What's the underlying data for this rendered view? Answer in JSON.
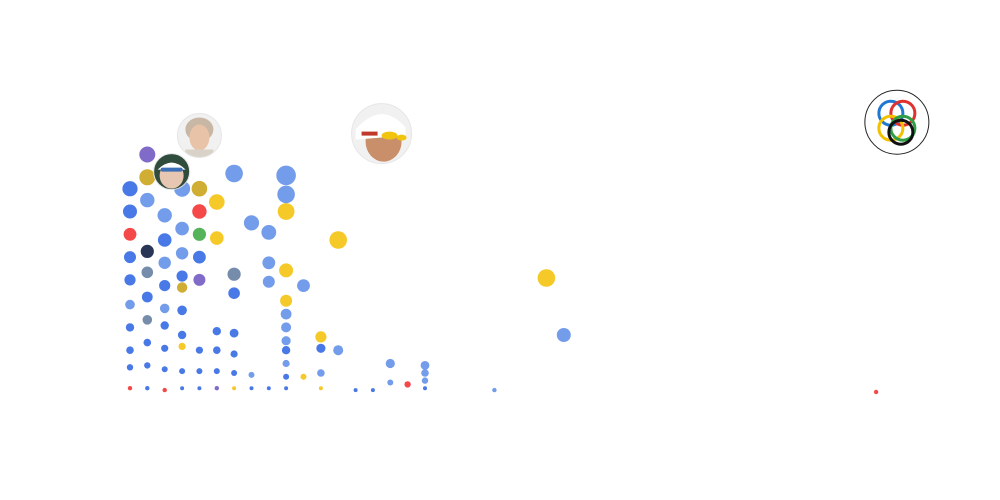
{
  "chart_data": {
    "type": "scatter",
    "title": "",
    "xlabel": "",
    "ylabel": "",
    "grid": false,
    "legend": "none",
    "colors": {
      "blue": "#3f72e6",
      "light_blue": "#6b97ea",
      "yellow": "#f4c61b",
      "red": "#f43f3f",
      "purple": "#7a63c6",
      "olive": "#cda928",
      "green": "#4caf50",
      "navy": "#1e2b4d",
      "gray_blue": "#6f86a6"
    },
    "annotations": [
      {
        "name": "portrait-older-woman-icon",
        "x": 4,
        "y": 13.5
      },
      {
        "name": "portrait-swimmer-cap-goggles-icon",
        "x": 14.5,
        "y": 13.6
      },
      {
        "name": "portrait-swimmer-goggles-icon",
        "x": 2.4,
        "y": 11.6
      },
      {
        "name": "olympic-rings-icon",
        "x": 44.2,
        "y": 14.2
      }
    ],
    "points": [
      {
        "x": 0,
        "y": 0.2,
        "s": 2.2,
        "c": "red"
      },
      {
        "x": 0,
        "y": 1.3,
        "s": 3.2,
        "c": "blue"
      },
      {
        "x": 0,
        "y": 2.2,
        "s": 3.8,
        "c": "blue"
      },
      {
        "x": 0,
        "y": 3.4,
        "s": 4.2,
        "c": "blue"
      },
      {
        "x": 0,
        "y": 4.6,
        "s": 4.8,
        "c": "light_blue"
      },
      {
        "x": 0,
        "y": 5.9,
        "s": 5.6,
        "c": "blue"
      },
      {
        "x": 0,
        "y": 7.1,
        "s": 6.0,
        "c": "blue"
      },
      {
        "x": 0,
        "y": 8.3,
        "s": 6.4,
        "c": "red"
      },
      {
        "x": 0,
        "y": 9.5,
        "s": 7.0,
        "c": "blue"
      },
      {
        "x": 0,
        "y": 10.7,
        "s": 7.6,
        "c": "blue"
      },
      {
        "x": 1,
        "y": 0.2,
        "s": 2.2,
        "c": "blue"
      },
      {
        "x": 1,
        "y": 1.4,
        "s": 3.2,
        "c": "blue"
      },
      {
        "x": 1,
        "y": 2.6,
        "s": 3.8,
        "c": "blue"
      },
      {
        "x": 1,
        "y": 3.8,
        "s": 4.8,
        "c": "gray_blue"
      },
      {
        "x": 1,
        "y": 5.0,
        "s": 5.4,
        "c": "blue"
      },
      {
        "x": 1,
        "y": 6.3,
        "s": 5.8,
        "c": "gray_blue"
      },
      {
        "x": 1,
        "y": 7.4,
        "s": 6.6,
        "c": "navy"
      },
      {
        "x": 1,
        "y": 10.1,
        "s": 7.2,
        "c": "light_blue"
      },
      {
        "x": 1,
        "y": 11.3,
        "s": 8.0,
        "c": "olive"
      },
      {
        "x": 1,
        "y": 12.5,
        "s": 8.0,
        "c": "purple"
      },
      {
        "x": 2,
        "y": 0.1,
        "s": 2.2,
        "c": "red"
      },
      {
        "x": 2,
        "y": 1.2,
        "s": 3.0,
        "c": "blue"
      },
      {
        "x": 2,
        "y": 2.3,
        "s": 3.6,
        "c": "blue"
      },
      {
        "x": 2,
        "y": 3.5,
        "s": 4.2,
        "c": "blue"
      },
      {
        "x": 2,
        "y": 4.4,
        "s": 4.8,
        "c": "light_blue"
      },
      {
        "x": 2,
        "y": 5.6,
        "s": 5.6,
        "c": "blue"
      },
      {
        "x": 2,
        "y": 6.8,
        "s": 6.2,
        "c": "light_blue"
      },
      {
        "x": 2,
        "y": 8.0,
        "s": 6.8,
        "c": "blue"
      },
      {
        "x": 2,
        "y": 9.3,
        "s": 7.2,
        "c": "light_blue"
      },
      {
        "x": 3,
        "y": 0.2,
        "s": 2.0,
        "c": "blue"
      },
      {
        "x": 3,
        "y": 1.1,
        "s": 3.0,
        "c": "blue"
      },
      {
        "x": 3,
        "y": 2.4,
        "s": 3.6,
        "c": "yellow"
      },
      {
        "x": 3,
        "y": 3.0,
        "s": 4.2,
        "c": "blue"
      },
      {
        "x": 3,
        "y": 4.3,
        "s": 4.8,
        "c": "blue"
      },
      {
        "x": 3,
        "y": 5.5,
        "s": 5.2,
        "c": "olive"
      },
      {
        "x": 3,
        "y": 6.1,
        "s": 5.6,
        "c": "blue"
      },
      {
        "x": 3,
        "y": 7.3,
        "s": 6.2,
        "c": "light_blue"
      },
      {
        "x": 3,
        "y": 8.6,
        "s": 6.8,
        "c": "light_blue"
      },
      {
        "x": 3,
        "y": 10.7,
        "s": 8.0,
        "c": "light_blue"
      },
      {
        "x": 4,
        "y": 0.2,
        "s": 2.0,
        "c": "blue"
      },
      {
        "x": 4,
        "y": 1.1,
        "s": 3.0,
        "c": "blue"
      },
      {
        "x": 4,
        "y": 2.2,
        "s": 3.6,
        "c": "blue"
      },
      {
        "x": 4,
        "y": 5.9,
        "s": 6.0,
        "c": "purple"
      },
      {
        "x": 4,
        "y": 7.1,
        "s": 6.4,
        "c": "blue"
      },
      {
        "x": 4,
        "y": 8.3,
        "s": 6.6,
        "c": "green"
      },
      {
        "x": 4,
        "y": 9.5,
        "s": 7.2,
        "c": "red"
      },
      {
        "x": 4,
        "y": 10.7,
        "s": 7.8,
        "c": "olive"
      },
      {
        "x": 5,
        "y": 0.2,
        "s": 2.2,
        "c": "purple"
      },
      {
        "x": 5,
        "y": 1.1,
        "s": 3.0,
        "c": "blue"
      },
      {
        "x": 5,
        "y": 2.2,
        "s": 3.8,
        "c": "blue"
      },
      {
        "x": 5,
        "y": 3.2,
        "s": 4.2,
        "c": "blue"
      },
      {
        "x": 5,
        "y": 8.1,
        "s": 6.8,
        "c": "yellow"
      },
      {
        "x": 5,
        "y": 10.0,
        "s": 7.8,
        "c": "yellow"
      },
      {
        "x": 6,
        "y": 0.2,
        "s": 2.0,
        "c": "yellow"
      },
      {
        "x": 6,
        "y": 1.0,
        "s": 3.0,
        "c": "blue"
      },
      {
        "x": 6,
        "y": 2.0,
        "s": 3.6,
        "c": "blue"
      },
      {
        "x": 6,
        "y": 3.1,
        "s": 4.4,
        "c": "blue"
      },
      {
        "x": 6,
        "y": 5.2,
        "s": 5.8,
        "c": "blue"
      },
      {
        "x": 6,
        "y": 6.2,
        "s": 6.6,
        "c": "gray_blue"
      },
      {
        "x": 6,
        "y": 11.5,
        "s": 8.8,
        "c": "light_blue"
      },
      {
        "x": 7,
        "y": 0.2,
        "s": 2.0,
        "c": "blue"
      },
      {
        "x": 7,
        "y": 0.9,
        "s": 3.0,
        "c": "light_blue"
      },
      {
        "x": 7,
        "y": 8.9,
        "s": 7.6,
        "c": "light_blue"
      },
      {
        "x": 8,
        "y": 0.2,
        "s": 2.0,
        "c": "blue"
      },
      {
        "x": 8,
        "y": 5.8,
        "s": 6.0,
        "c": "light_blue"
      },
      {
        "x": 8,
        "y": 6.8,
        "s": 6.4,
        "c": "light_blue"
      },
      {
        "x": 8,
        "y": 8.4,
        "s": 7.4,
        "c": "light_blue"
      },
      {
        "x": 9,
        "y": 0.2,
        "s": 2.0,
        "c": "blue"
      },
      {
        "x": 9,
        "y": 0.8,
        "s": 3.0,
        "c": "blue"
      },
      {
        "x": 9,
        "y": 1.5,
        "s": 3.6,
        "c": "light_blue"
      },
      {
        "x": 9,
        "y": 2.2,
        "s": 4.2,
        "c": "blue"
      },
      {
        "x": 9,
        "y": 2.7,
        "s": 4.6,
        "c": "light_blue"
      },
      {
        "x": 9,
        "y": 3.4,
        "s": 5.0,
        "c": "light_blue"
      },
      {
        "x": 9,
        "y": 4.1,
        "s": 5.4,
        "c": "light_blue"
      },
      {
        "x": 9,
        "y": 4.8,
        "s": 6.0,
        "c": "yellow"
      },
      {
        "x": 9,
        "y": 6.4,
        "s": 7.0,
        "c": "yellow"
      },
      {
        "x": 9,
        "y": 9.5,
        "s": 8.4,
        "c": "yellow"
      },
      {
        "x": 9,
        "y": 10.4,
        "s": 8.8,
        "c": "light_blue"
      },
      {
        "x": 9,
        "y": 11.4,
        "s": 9.8,
        "c": "light_blue"
      },
      {
        "x": 10,
        "y": 0.8,
        "s": 3.0,
        "c": "yellow"
      },
      {
        "x": 10,
        "y": 5.6,
        "s": 6.4,
        "c": "light_blue"
      },
      {
        "x": 11,
        "y": 0.2,
        "s": 2.0,
        "c": "yellow"
      },
      {
        "x": 11,
        "y": 1.0,
        "s": 3.8,
        "c": "light_blue"
      },
      {
        "x": 11,
        "y": 2.3,
        "s": 4.6,
        "c": "blue"
      },
      {
        "x": 11,
        "y": 2.9,
        "s": 5.6,
        "c": "yellow"
      },
      {
        "x": 12,
        "y": 2.2,
        "s": 5.0,
        "c": "light_blue"
      },
      {
        "x": 12,
        "y": 8.0,
        "s": 8.8,
        "c": "yellow"
      },
      {
        "x": 13,
        "y": 0.1,
        "s": 2.0,
        "c": "blue"
      },
      {
        "x": 14,
        "y": 0.1,
        "s": 2.0,
        "c": "blue"
      },
      {
        "x": 15,
        "y": 0.5,
        "s": 3.0,
        "c": "light_blue"
      },
      {
        "x": 15,
        "y": 1.5,
        "s": 4.6,
        "c": "light_blue"
      },
      {
        "x": 16,
        "y": 0.4,
        "s": 3.2,
        "c": "red"
      },
      {
        "x": 17,
        "y": 0.2,
        "s": 2.0,
        "c": "blue"
      },
      {
        "x": 17,
        "y": 0.6,
        "s": 3.2,
        "c": "light_blue"
      },
      {
        "x": 17,
        "y": 1.0,
        "s": 3.8,
        "c": "light_blue"
      },
      {
        "x": 17,
        "y": 1.4,
        "s": 4.4,
        "c": "light_blue"
      },
      {
        "x": 21,
        "y": 0.1,
        "s": 2.2,
        "c": "light_blue"
      },
      {
        "x": 24,
        "y": 6.0,
        "s": 8.8,
        "c": "yellow"
      },
      {
        "x": 25,
        "y": 3.0,
        "s": 7.0,
        "c": "light_blue"
      },
      {
        "x": 43,
        "y": 0.0,
        "s": 2.2,
        "c": "red"
      }
    ]
  }
}
